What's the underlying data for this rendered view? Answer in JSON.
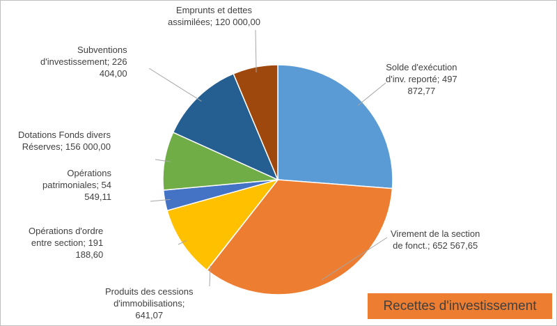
{
  "chart_data": {
    "type": "pie",
    "title": "Recettes d'investissement",
    "slices": [
      {
        "label": "Solde d'exécution\nd'inv. reporté; 497\n872,77",
        "name": "Solde d'exécution d'inv. reporté",
        "value": 497872.77,
        "color": "#5b9bd5"
      },
      {
        "label": "Virement de la section\nde fonct.; 652 567,65",
        "name": "Virement de la section de fonct.",
        "value": 652567.65,
        "color": "#ed7d31"
      },
      {
        "label": "Produits des cessions\nd'immobilisations;\n641,07",
        "name": "Produits des cessions d'immobilisations",
        "value": 641.07,
        "color": "#a5a5a5"
      },
      {
        "label": "Opérations d'ordre\nentre section; 191\n188,60",
        "name": "Opérations d'ordre entre section",
        "value": 191188.6,
        "color": "#ffc000"
      },
      {
        "label": "Opérations\npatrimoniales; 54\n549,11",
        "name": "Opérations patrimoniales",
        "value": 54549.11,
        "color": "#4472c4"
      },
      {
        "label": "Dotations Fonds divers\nRéserves; 156 000,00",
        "name": "Dotations Fonds divers Réserves",
        "value": 156000.0,
        "color": "#70ad47"
      },
      {
        "label": "Subventions\nd'investissement; 226\n404,00",
        "name": "Subventions d'investissement",
        "value": 226404.0,
        "color": "#255e91"
      },
      {
        "label": "Emprunts et dettes\nassimilées; 120 000,00",
        "name": "Emprunts et dettes assimilées",
        "value": 120000.0,
        "color": "#9e480e"
      }
    ]
  }
}
